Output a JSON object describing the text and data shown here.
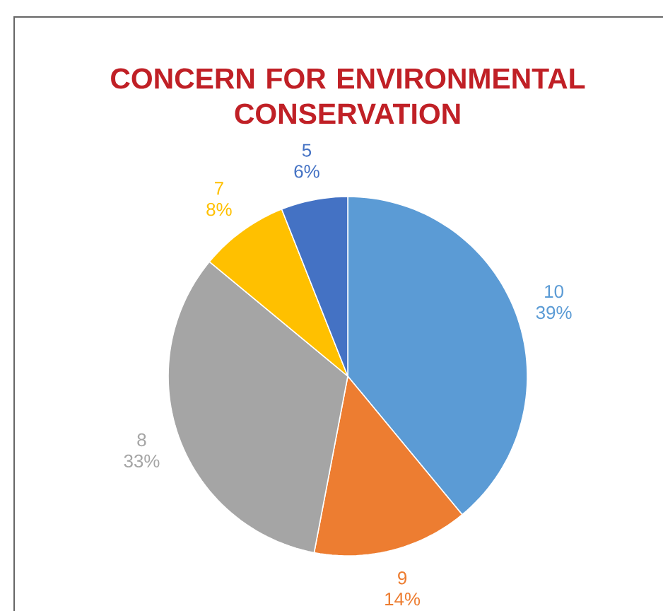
{
  "chart_data": {
    "type": "pie",
    "title": "CONCERN FOR ENVIRONMENTAL CONSERVATION",
    "categories": [
      "10",
      "9",
      "8",
      "7",
      "5"
    ],
    "values": [
      39,
      14,
      33,
      8,
      6
    ],
    "value_labels": [
      "39%",
      "14%",
      "33%",
      "8%",
      "6%"
    ],
    "colors": [
      "#5b9bd5",
      "#ed7d31",
      "#a5a5a5",
      "#ffc000",
      "#4472c4"
    ]
  }
}
